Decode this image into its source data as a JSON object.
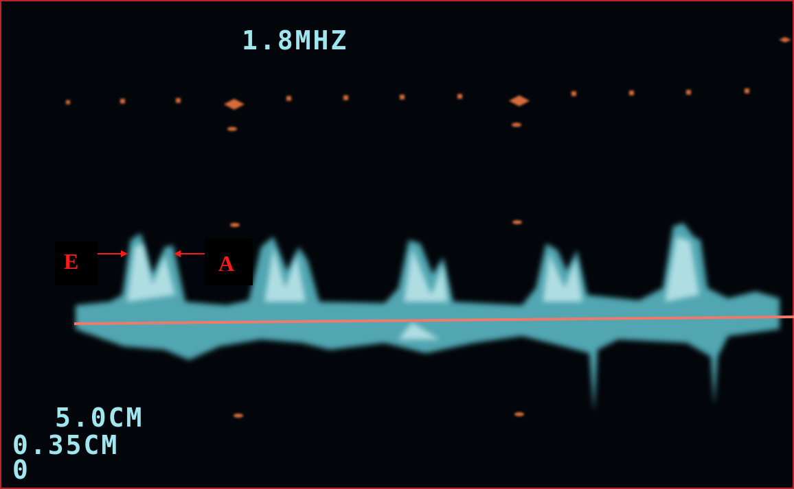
{
  "header": {
    "frequency": "1.8MHZ"
  },
  "labels": {
    "e_wave": "E",
    "a_wave": "A"
  },
  "settings": [
    "5.0CM",
    "0.35CM",
    "0"
  ]
}
